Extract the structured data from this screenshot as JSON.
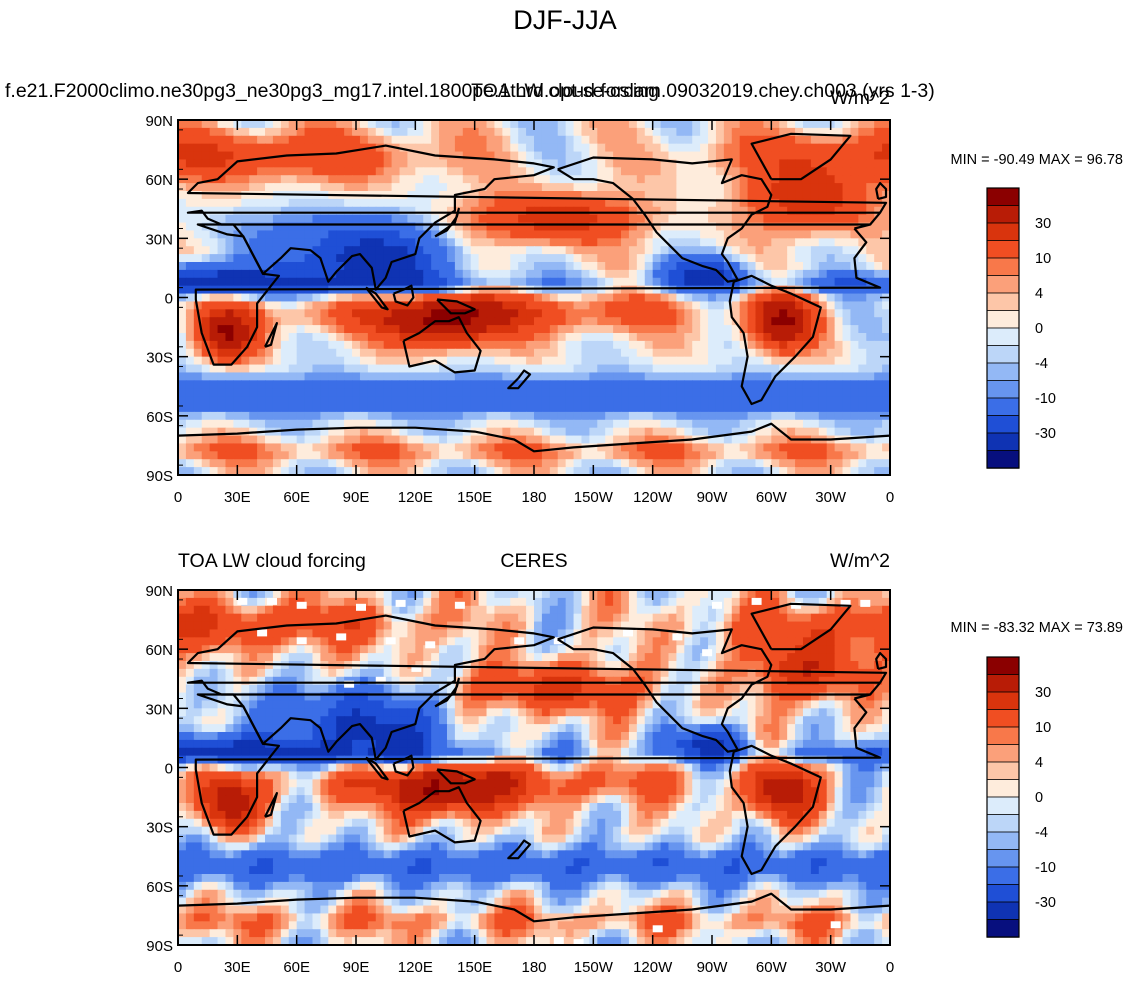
{
  "title": "DJF-JJA",
  "chart_data": [
    {
      "type": "heatmap",
      "left_title": "f.e21.F2000climo.ne30pg3_ne30pg3_mg17.intel.1800pe.1thrd.opt-se-cslam.09032019.chey.ch003 (yrs 1-3)",
      "center_title": "TOA LW cloud forcing",
      "units": "W/m^2",
      "stats": "MIN = -90.49 MAX =  96.78",
      "min": -90.49,
      "max": 96.78,
      "lat_ticks": [
        "90N",
        "60N",
        "30N",
        "0",
        "30S",
        "60S",
        "90S"
      ],
      "lon_ticks": [
        "0",
        "30E",
        "60E",
        "90E",
        "120E",
        "150E",
        "180",
        "150W",
        "120W",
        "90W",
        "60W",
        "30W",
        "0"
      ],
      "colorbar_labels": [
        "30",
        "10",
        "4",
        "0",
        "-4",
        "-10",
        "-30"
      ],
      "missing_data": false
    },
    {
      "type": "heatmap",
      "left_title": "TOA LW cloud forcing",
      "center_title": "CERES",
      "units": "W/m^2",
      "stats": "MIN = -83.32 MAX =  73.89",
      "min": -83.32,
      "max": 73.89,
      "lat_ticks": [
        "90N",
        "60N",
        "30N",
        "0",
        "30S",
        "60S",
        "90S"
      ],
      "lon_ticks": [
        "0",
        "30E",
        "60E",
        "90E",
        "120E",
        "150E",
        "180",
        "150W",
        "120W",
        "90W",
        "60W",
        "30W",
        "0"
      ],
      "colorbar_labels": [
        "30",
        "10",
        "4",
        "0",
        "-4",
        "-10",
        "-30"
      ],
      "missing_data": true
    }
  ],
  "colorbar_colors": [
    "#8b0000",
    "#b81c06",
    "#d9340d",
    "#f04e22",
    "#f8784a",
    "#fba07a",
    "#fdc6a8",
    "#feecdc",
    "#dcecfb",
    "#bcd6f8",
    "#93b8f5",
    "#6795ef",
    "#3b6ee7",
    "#1f4fd6",
    "#0f33b3",
    "#070f7e"
  ]
}
